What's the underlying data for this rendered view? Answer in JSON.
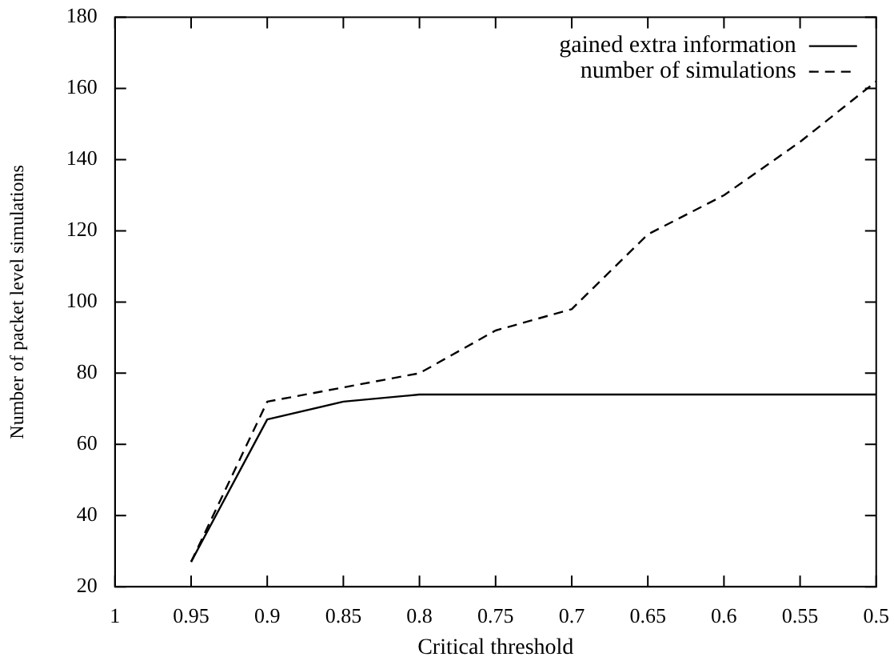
{
  "chart_data": {
    "type": "line",
    "xlabel": "Critical threshold",
    "ylabel": "Number of packet level simulations",
    "x": [
      0.95,
      0.9,
      0.85,
      0.8,
      0.75,
      0.7,
      0.65,
      0.6,
      0.55,
      0.5
    ],
    "series": [
      {
        "name": "gained extra information",
        "color": "#000000",
        "line_style": "solid",
        "values": [
          27,
          67,
          72,
          74,
          74,
          74,
          74,
          74,
          74,
          74
        ]
      },
      {
        "name": "number of simulations",
        "color": "#000000",
        "line_style": "dashed",
        "values": [
          27,
          72,
          76,
          80,
          92,
          98,
          119,
          130,
          145,
          162
        ]
      }
    ],
    "xlim": [
      1,
      0.5
    ],
    "xticks": [
      1,
      0.95,
      0.9,
      0.85,
      0.8,
      0.75,
      0.7,
      0.65,
      0.6,
      0.55,
      0.5
    ],
    "ylim": [
      20,
      180
    ],
    "yticks": [
      20,
      40,
      60,
      80,
      100,
      120,
      140,
      160,
      180
    ],
    "legend": "top right",
    "marker": "none"
  }
}
